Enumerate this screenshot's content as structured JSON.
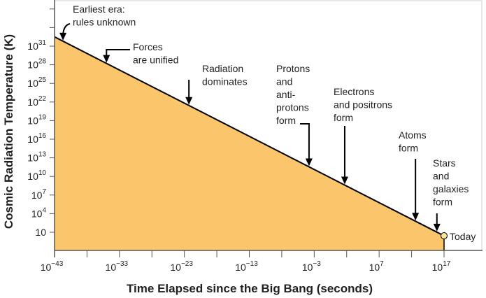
{
  "chart_data": {
    "type": "area",
    "title": "",
    "xlabel": "Time Elapsed since the Big Bang (seconds)",
    "ylabel": "Cosmic Radiation Temperature (K)",
    "x_scale": "log",
    "y_scale": "log",
    "xlim_log10": [
      -43,
      17
    ],
    "ylim_log10": [
      -2.9,
      37
    ],
    "x_ticks": [
      {
        "base": "10",
        "exp": "−43",
        "log": -43
      },
      {
        "base": "10",
        "exp": "−33",
        "log": -33
      },
      {
        "base": "10",
        "exp": "−23",
        "log": -23
      },
      {
        "base": "10",
        "exp": "−13",
        "log": -13
      },
      {
        "base": "10",
        "exp": "−3",
        "log": -3
      },
      {
        "base": "10",
        "exp": "7",
        "log": 7
      },
      {
        "base": "10",
        "exp": "17",
        "log": 17
      }
    ],
    "x_minor_ticks_log": [
      -38,
      -28,
      -18,
      -8,
      2,
      12
    ],
    "y_ticks": [
      {
        "base": "10",
        "exp": "31",
        "log": 31
      },
      {
        "base": "10",
        "exp": "28",
        "log": 28
      },
      {
        "base": "10",
        "exp": "25",
        "log": 25
      },
      {
        "base": "10",
        "exp": "22",
        "log": 22
      },
      {
        "base": "10",
        "exp": "19",
        "log": 19
      },
      {
        "base": "10",
        "exp": "16",
        "log": 16
      },
      {
        "base": "10",
        "exp": "13",
        "log": 13
      },
      {
        "base": "10",
        "exp": "10",
        "log": 10
      },
      {
        "base": "10",
        "exp": "7",
        "log": 7
      },
      {
        "base": "10",
        "exp": "4",
        "log": 4
      },
      {
        "base": "10",
        "exp": "",
        "log": 1
      }
    ],
    "y_unlabeled_ticks_log": [
      37,
      34
    ],
    "series": [
      {
        "x_log10": [
          -43,
          17
        ],
        "y_log10": [
          32.5,
          0.43
        ]
      }
    ],
    "fill_color": "#FAC56B",
    "line_color": "#000000",
    "marker": {
      "label": "Today",
      "x_log10": 17,
      "y_log10": 0.43,
      "color": "#FBE79A"
    },
    "annotations": [
      {
        "lines": [
          "Earliest era:",
          "rules unknown"
        ],
        "x_log10": -41.7
      },
      {
        "lines": [
          "Forces",
          "are unified"
        ],
        "x_log10": -35
      },
      {
        "lines": [
          "Radiation",
          "dominates"
        ],
        "x_log10": -22.3
      },
      {
        "lines": [
          "Protons",
          "and",
          "anti-",
          "protons",
          "form"
        ],
        "x_log10": -3.8
      },
      {
        "lines": [
          "Electrons",
          "and positrons",
          "form"
        ],
        "x_log10": 1.7
      },
      {
        "lines": [
          "Atoms",
          "form"
        ],
        "x_log10": 12.6
      },
      {
        "lines": [
          "Stars",
          "and",
          "galaxies",
          "form"
        ],
        "x_log10": 15.9
      }
    ],
    "grid": false,
    "legend": "none"
  }
}
